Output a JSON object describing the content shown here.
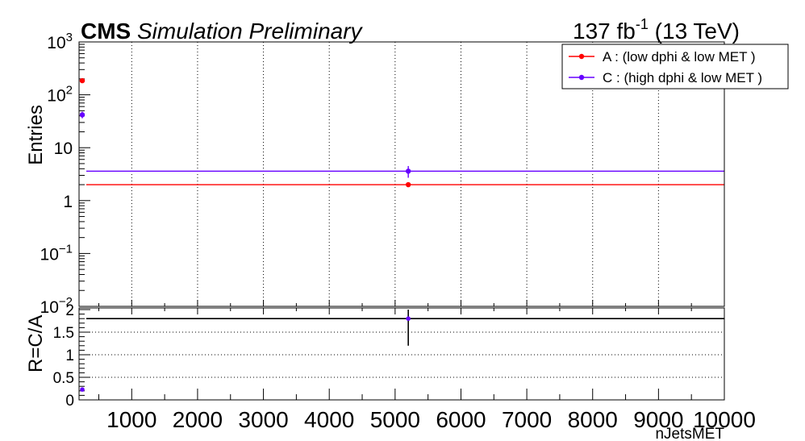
{
  "header": {
    "experiment": "CMS",
    "status": "Simulation Preliminary",
    "lumi_value": "137 fb",
    "lumi_exp": "-1",
    "energy": "(13 TeV)"
  },
  "chart_data": [
    {
      "type": "scatter",
      "panel": "main",
      "ylabel": "Entries",
      "yscale": "log",
      "xlim": [
        200,
        10000
      ],
      "ylim": [
        0.01,
        1000
      ],
      "y_ticks": [
        {
          "value": 1000,
          "base": "10",
          "exp": "3"
        },
        {
          "value": 100,
          "base": "10",
          "exp": "2"
        },
        {
          "value": 10,
          "base": "10",
          "exp": ""
        },
        {
          "value": 1,
          "base": "1",
          "exp": ""
        },
        {
          "value": 0.1,
          "base": "10",
          "exp": "−1"
        },
        {
          "value": 0.01,
          "base": "10",
          "exp": "−2"
        }
      ],
      "grid": "vertical dotted",
      "legend_position": "top-right",
      "series": [
        {
          "name": "A : (low dphi & low MET )",
          "color": "#ff0000",
          "points": [
            {
              "x": 210,
              "y": 185,
              "yerr": [
                12,
                12
              ]
            },
            {
              "x": 5200,
              "y": 2.0,
              "yerr": [
                0.2,
                0.2
              ]
            }
          ],
          "fit_constant": 2.0
        },
        {
          "name": "C : (high dphi & low MET )",
          "color": "#6600ff",
          "points": [
            {
              "x": 210,
              "y": 42,
              "yerr": [
                6,
                6
              ]
            },
            {
              "x": 5200,
              "y": 3.6,
              "yerr": [
                0.9,
                0.9
              ]
            }
          ],
          "fit_constant": 3.6
        }
      ]
    },
    {
      "type": "scatter",
      "panel": "ratio",
      "ylabel": "R=C/A",
      "xlabel": "nJetsMET",
      "xlim": [
        200,
        10000
      ],
      "ylim": [
        0,
        2
      ],
      "y_ticks": [
        "0",
        "0.5",
        "1",
        "1.5",
        "2"
      ],
      "x_ticks": [
        "1000",
        "2000",
        "3000",
        "4000",
        "5000",
        "6000",
        "7000",
        "8000",
        "9000",
        "10000"
      ],
      "grid": "horizontal dotted",
      "fit_constant": 1.8,
      "points": [
        {
          "x": 210,
          "y": 0.23,
          "yerr": [
            0.03,
            0.03
          ],
          "color": "#6600ff"
        },
        {
          "x": 5200,
          "y": 1.8,
          "yerr": [
            0.6,
            0.6
          ],
          "color": "#6600ff"
        }
      ]
    }
  ]
}
